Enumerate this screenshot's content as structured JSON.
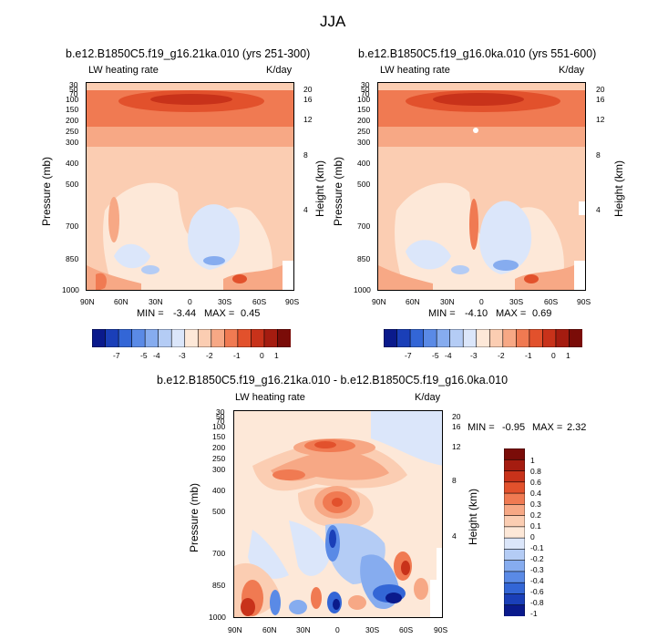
{
  "page_title": "JJA",
  "chart_data": [
    {
      "type": "contour",
      "title": "b.e12.B1850C5.f19_g16.21ka.010 (yrs 251-300)",
      "left_label": "LW heating rate",
      "right_label": "K/day",
      "xlabel": "",
      "ylabel": "Pressure (mb)",
      "y2label": "Height (km)",
      "x_ticks": [
        "90N",
        "60N",
        "30N",
        "0",
        "30S",
        "60S",
        "90S"
      ],
      "y_ticks": [
        "30",
        "50",
        "70",
        "100",
        "150",
        "200",
        "250",
        "300",
        "400",
        "500",
        "700",
        "850",
        "1000"
      ],
      "y2_ticks": [
        "20",
        "16",
        "12",
        "8",
        "4"
      ],
      "stats": {
        "min_label": "MIN =",
        "min": "-3.44",
        "max_label": "MAX =",
        "max": "0.45"
      },
      "colorbar": {
        "orientation": "horizontal",
        "labels": [
          "-7",
          "-5",
          "-4",
          "-3",
          "-2",
          "-1",
          "0",
          "1"
        ],
        "colors": [
          "#0a1a8c",
          "#1a3fb8",
          "#3366d6",
          "#5a8ae6",
          "#86acef",
          "#b4ccf5",
          "#dbe6fa",
          "#fde8d8",
          "#fbcdb2",
          "#f7a885",
          "#f07a52",
          "#e2512c",
          "#c8321a",
          "#a51c10",
          "#7a0c08"
        ]
      }
    },
    {
      "type": "contour",
      "title": "b.e12.B1850C5.f19_g16.0ka.010 (yrs 551-600)",
      "left_label": "LW heating rate",
      "right_label": "K/day",
      "xlabel": "",
      "ylabel": "Pressure (mb)",
      "y2label": "Height (km)",
      "x_ticks": [
        "90N",
        "60N",
        "30N",
        "0",
        "30S",
        "60S",
        "90S"
      ],
      "y_ticks": [
        "30",
        "50",
        "70",
        "100",
        "150",
        "200",
        "250",
        "300",
        "400",
        "500",
        "700",
        "850",
        "1000"
      ],
      "y2_ticks": [
        "20",
        "16",
        "12",
        "8",
        "4"
      ],
      "stats": {
        "min_label": "MIN =",
        "min": "-4.10",
        "max_label": "MAX =",
        "max": "0.69"
      },
      "colorbar": {
        "orientation": "horizontal",
        "labels": [
          "-7",
          "-5",
          "-4",
          "-3",
          "-2",
          "-1",
          "0",
          "1"
        ],
        "colors": [
          "#0a1a8c",
          "#1a3fb8",
          "#3366d6",
          "#5a8ae6",
          "#86acef",
          "#b4ccf5",
          "#dbe6fa",
          "#fde8d8",
          "#fbcdb2",
          "#f7a885",
          "#f07a52",
          "#e2512c",
          "#c8321a",
          "#a51c10",
          "#7a0c08"
        ]
      }
    },
    {
      "type": "contour",
      "title": "b.e12.B1850C5.f19_g16.21ka.010 - b.e12.B1850C5.f19_g16.0ka.010",
      "left_label": "LW heating rate",
      "right_label": "K/day",
      "xlabel": "",
      "ylabel": "Pressure (mb)",
      "y2label": "Height (km)",
      "x_ticks": [
        "90N",
        "60N",
        "30N",
        "0",
        "30S",
        "60S",
        "90S"
      ],
      "y_ticks": [
        "30",
        "50",
        "70",
        "100",
        "150",
        "200",
        "250",
        "300",
        "400",
        "500",
        "700",
        "850",
        "1000"
      ],
      "y2_ticks": [
        "20",
        "16",
        "12",
        "8",
        "4"
      ],
      "stats": {
        "min_label": "MIN =",
        "min": "-0.95",
        "max_label": "MAX =",
        "max": "2.32"
      },
      "colorbar": {
        "orientation": "vertical",
        "labels": [
          "1",
          "0.8",
          "0.6",
          "0.4",
          "0.3",
          "0.2",
          "0.1",
          "0",
          "-0.1",
          "-0.2",
          "-0.3",
          "-0.4",
          "-0.6",
          "-0.8",
          "-1"
        ],
        "colors": [
          "#7a0c08",
          "#a51c10",
          "#c8321a",
          "#e2512c",
          "#f07a52",
          "#f7a885",
          "#fbcdb2",
          "#fde8d8",
          "#dbe6fa",
          "#b4ccf5",
          "#86acef",
          "#5a8ae6",
          "#3366d6",
          "#1a3fb8",
          "#0a1a8c"
        ]
      }
    }
  ]
}
